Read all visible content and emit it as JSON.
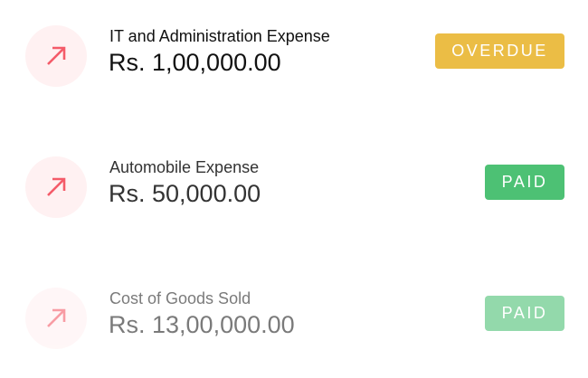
{
  "items": [
    {
      "title": "IT and Administration Expense",
      "amount": "Rs. 1,00,000.00",
      "status": "OVERDUE",
      "status_color": "#ebbd45",
      "icon": "arrow-up-right-icon"
    },
    {
      "title": "Automobile Expense",
      "amount": "Rs. 50,000.00",
      "status": "PAID",
      "status_color": "#4dc174",
      "icon": "arrow-up-right-icon"
    },
    {
      "title": "Cost of Goods Sold",
      "amount": "Rs. 13,00,000.00",
      "status": "PAID",
      "status_color": "#4dc174",
      "icon": "arrow-up-right-icon"
    }
  ],
  "colors": {
    "icon": "#f45b69",
    "icon_bg": "#fff1f2"
  }
}
